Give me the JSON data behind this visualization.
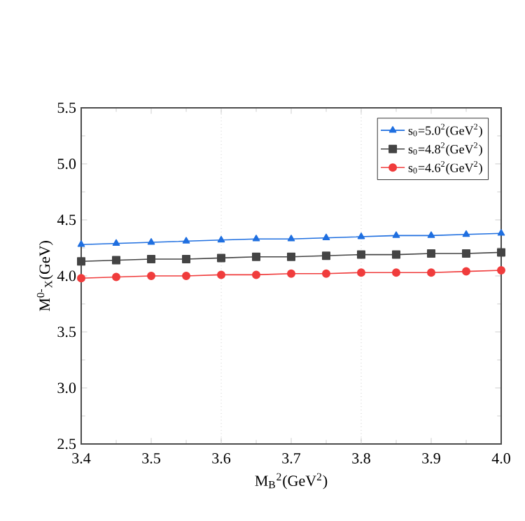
{
  "chart_data": {
    "type": "line",
    "xlabel": "M$_{B}$$^{2}$(GeV$^{2}$)",
    "ylabel": "M$^{0-}$$_{X}$(GeV)",
    "x": [
      3.4,
      3.45,
      3.5,
      3.55,
      3.6,
      3.65,
      3.7,
      3.75,
      3.8,
      3.85,
      3.9,
      3.95,
      4.0
    ],
    "series": [
      {
        "name": "s$_{0}$=5.0$^{2}$(GeV$^{2}$)",
        "color": "#1f6fe0",
        "marker": "triangle",
        "values": [
          4.28,
          4.29,
          4.3,
          4.31,
          4.32,
          4.33,
          4.33,
          4.34,
          4.35,
          4.36,
          4.36,
          4.37,
          4.38
        ]
      },
      {
        "name": "s$_{0}$=4.8$^{2}$(GeV$^{2}$)",
        "color": "#444444",
        "marker": "square",
        "values": [
          4.13,
          4.14,
          4.15,
          4.15,
          4.16,
          4.17,
          4.17,
          4.18,
          4.19,
          4.19,
          4.2,
          4.2,
          4.21
        ]
      },
      {
        "name": "s$_{0}$=4.6$^{2}$(GeV$^{2}$)",
        "color": "#f03c3c",
        "marker": "circle",
        "values": [
          3.98,
          3.99,
          4.0,
          4.0,
          4.01,
          4.01,
          4.02,
          4.02,
          4.03,
          4.03,
          4.03,
          4.04,
          4.05
        ]
      }
    ],
    "xlim": [
      3.4,
      4.0
    ],
    "xticks": [
      3.4,
      3.5,
      3.6,
      3.7,
      3.8,
      3.9,
      {
        "value": 4.0,
        "label": "4.0"
      }
    ],
    "ylim": [
      2.5,
      5.5
    ],
    "yticks": [
      2.5,
      {
        "value": 3.0,
        "label": "3.0"
      },
      3.5,
      {
        "value": 4.0,
        "label": "4.0"
      },
      4.5,
      {
        "value": 5.0,
        "label": "5.0"
      },
      5.5
    ],
    "ref_lines": [
      {
        "axis": "x",
        "value": 3.6,
        "line_style": "dotted",
        "color": "#aaaaaa"
      },
      {
        "axis": "x",
        "value": 3.8,
        "line_style": "dotted",
        "color": "#aaaaaa"
      }
    ],
    "legend": "top right",
    "line_style": "solid"
  }
}
